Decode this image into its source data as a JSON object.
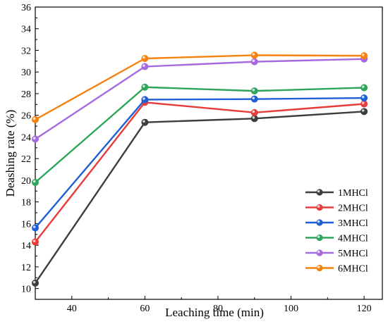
{
  "chart_data": {
    "type": "line",
    "title": "",
    "xlabel": "Leaching time (min)",
    "ylabel": "Deashing rate (%)",
    "xlim": [
      30,
      125
    ],
    "ylim": [
      9,
      36
    ],
    "xticks": [
      40,
      60,
      80,
      100,
      120
    ],
    "yticks": [
      10,
      12,
      14,
      16,
      18,
      20,
      22,
      24,
      26,
      28,
      30,
      32,
      34,
      36
    ],
    "grid": false,
    "legend_position": "bottom-right",
    "x": [
      30,
      60,
      90,
      120
    ],
    "series": [
      {
        "name": "1MHCl",
        "color": "#3d3d3d",
        "values": [
          10.5,
          25.35,
          25.7,
          26.35
        ]
      },
      {
        "name": "2MHCl",
        "color": "#e83b3b",
        "values": [
          14.3,
          27.2,
          26.25,
          27.05
        ]
      },
      {
        "name": "3MHCl",
        "color": "#1f5fd6",
        "values": [
          15.6,
          27.45,
          27.5,
          27.6
        ]
      },
      {
        "name": "4MHCl",
        "color": "#2ea55a",
        "values": [
          19.8,
          28.6,
          28.25,
          28.55
        ]
      },
      {
        "name": "5MHCl",
        "color": "#a56ae0",
        "values": [
          23.8,
          30.5,
          30.95,
          31.2
        ]
      },
      {
        "name": "6MHCl",
        "color": "#f5820e",
        "values": [
          25.6,
          31.25,
          31.55,
          31.5
        ]
      }
    ]
  }
}
